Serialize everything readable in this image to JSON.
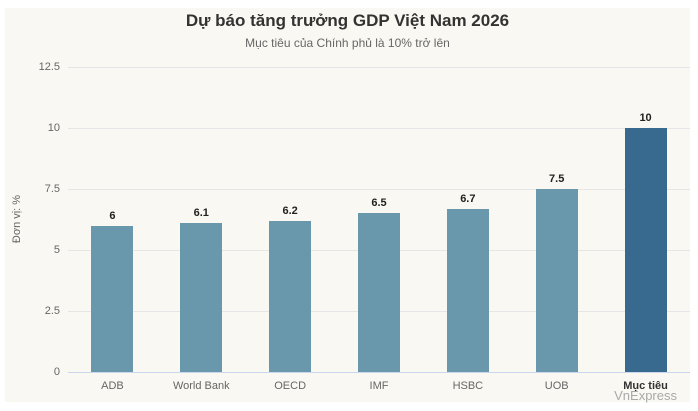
{
  "chart": {
    "title": "Dự báo tăng trưởng GDP Việt Nam 2026",
    "subtitle": "Mục tiêu của Chính phủ là 10% trở lên",
    "watermark": "VnExpress",
    "background": "#faf8f2",
    "colors": {
      "bar": "#6997ab",
      "highlight_bar": "#376a8e",
      "gridline": "#e6e6e6",
      "axis_line": "#ccd6eb",
      "tick_text": "#666666",
      "title_text": "#333333",
      "data_label_text": "#222222",
      "watermark_text": "#a9a9a9"
    }
  },
  "chart_data": {
    "type": "bar",
    "title": "Dự báo tăng trưởng GDP Việt Nam 2026",
    "subtitle": "Mục tiêu của Chính phủ là 10% trở lên",
    "categories": [
      "ADB",
      "World Bank",
      "OECD",
      "IMF",
      "HSBC",
      "UOB",
      "Mục tiêu"
    ],
    "values": [
      6,
      6.1,
      6.2,
      6.5,
      6.7,
      7.5,
      10
    ],
    "data_labels": [
      "6",
      "6.1",
      "6.2",
      "6.5",
      "6.7",
      "7.5",
      "10"
    ],
    "highlight_index": 6,
    "xlabel": "",
    "ylabel": "Đơn vị: %",
    "ylim": [
      0,
      12.5
    ],
    "yticks": [
      0,
      2.5,
      5,
      7.5,
      10,
      12.5
    ],
    "ytick_labels": [
      "0",
      "2.5",
      "5",
      "7.5",
      "10",
      "12.5"
    ],
    "grid": true,
    "legend": "none"
  }
}
